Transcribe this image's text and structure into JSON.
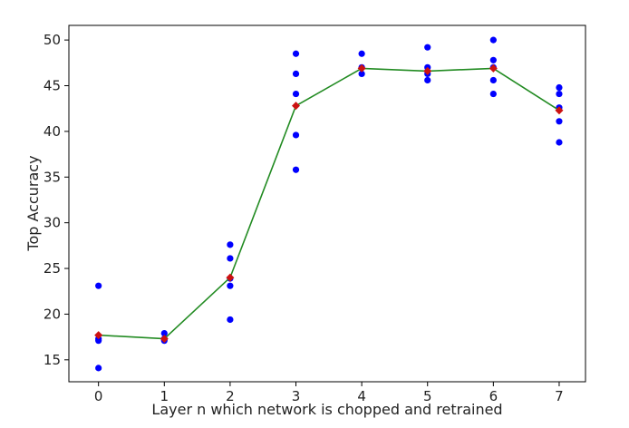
{
  "chart_data": {
    "type": "scatter",
    "title": "",
    "xlabel": "Layer n which network is chopped and retrained",
    "ylabel": "Top Accuracy",
    "xlim": [
      -0.45,
      7.4
    ],
    "ylim": [
      12.6,
      51.6
    ],
    "grid": false,
    "x_ticks": [
      0,
      1,
      2,
      3,
      4,
      5,
      6,
      7
    ],
    "y_ticks": [
      15,
      20,
      25,
      30,
      35,
      40,
      45,
      50
    ],
    "series": [
      {
        "kind": "points",
        "color": "#0000ff",
        "points": [
          [
            0,
            23.1
          ],
          [
            0,
            17.3
          ],
          [
            0,
            17.1
          ],
          [
            0,
            14.1
          ],
          [
            1,
            17.9
          ],
          [
            1,
            17.3
          ],
          [
            1,
            17.1
          ],
          [
            2,
            27.6
          ],
          [
            2,
            26.1
          ],
          [
            2,
            23.9
          ],
          [
            2,
            23.1
          ],
          [
            2,
            19.4
          ],
          [
            3,
            48.5
          ],
          [
            3,
            46.3
          ],
          [
            3,
            44.1
          ],
          [
            3,
            39.6
          ],
          [
            3,
            35.8
          ],
          [
            4,
            48.5
          ],
          [
            4,
            47.0
          ],
          [
            4,
            46.3
          ],
          [
            5,
            49.2
          ],
          [
            5,
            47.0
          ],
          [
            5,
            46.3
          ],
          [
            5,
            45.6
          ],
          [
            6,
            50.0
          ],
          [
            6,
            47.8
          ],
          [
            6,
            47.0
          ],
          [
            6,
            45.6
          ],
          [
            6,
            44.1
          ],
          [
            7,
            44.8
          ],
          [
            7,
            44.1
          ],
          [
            7,
            42.6
          ],
          [
            7,
            41.1
          ],
          [
            7,
            38.8
          ]
        ]
      },
      {
        "kind": "mean",
        "line_color": "#228b22",
        "marker_color": "#cc1111",
        "x": [
          0,
          1,
          2,
          3,
          4,
          5,
          6,
          7
        ],
        "values": [
          17.7,
          17.3,
          24.0,
          42.8,
          46.9,
          46.6,
          46.9,
          42.3
        ]
      }
    ]
  }
}
